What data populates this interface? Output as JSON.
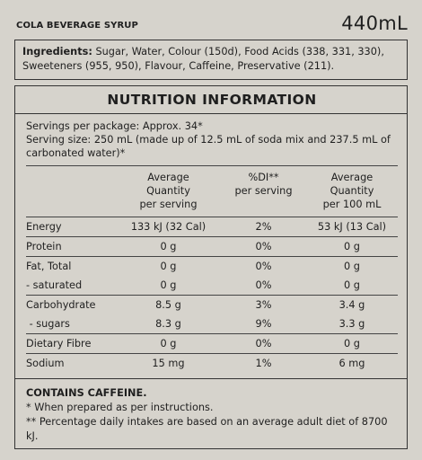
{
  "header": {
    "product_name": "COLA BEVERAGE SYRUP",
    "volume": "440mL"
  },
  "ingredients": {
    "label": "Ingredients:",
    "text": " Sugar, Water, Colour (150d), Food Acids (338, 331, 330), Sweeteners (955, 950), Flavour, Caffeine, Preservative (211)."
  },
  "nutrition": {
    "title": "NUTRITION INFORMATION",
    "servings_per_package": "Servings per package: Approx. 34*",
    "serving_size": "Serving size: 250 mL (made up of 12.5 mL of soda mix and 237.5 mL of carbonated water)*",
    "columns": {
      "avg_per_serving": [
        "Average",
        "Quantity",
        "per serving"
      ],
      "di_per_serving": [
        "%DI**",
        "per serving"
      ],
      "avg_per_100ml": [
        "Average",
        "Quantity",
        "per 100 mL"
      ]
    },
    "rows": [
      {
        "name": "Energy",
        "serving": "133 kJ (32 Cal)",
        "di": "2%",
        "per100": "53 kJ (13 Cal)"
      },
      {
        "name": "Protein",
        "serving": "0 g",
        "di": "0%",
        "per100": "0 g"
      },
      {
        "name": "Fat, Total",
        "serving": "0 g",
        "di": "0%",
        "per100": "0 g"
      },
      {
        "name": "- saturated",
        "serving": "0 g",
        "di": "0%",
        "per100": "0 g"
      },
      {
        "name": "Carbohydrate",
        "serving": "8.5 g",
        "di": "3%",
        "per100": "3.4 g"
      },
      {
        "name": " - sugars",
        "serving": "8.3 g",
        "di": "9%",
        "per100": "3.3 g"
      },
      {
        "name": "Dietary Fibre",
        "serving": "0 g",
        "di": "0%",
        "per100": "0 g"
      },
      {
        "name": "Sodium",
        "serving": "15 mg",
        "di": "1%",
        "per100": "6 mg"
      }
    ]
  },
  "notes": {
    "caffeine": "CONTAINS CAFFEINE.",
    "footnote1": "* When prepared as per instructions.",
    "footnote2": "** Percentage daily intakes are based on an average adult diet of 8700 kJ."
  }
}
